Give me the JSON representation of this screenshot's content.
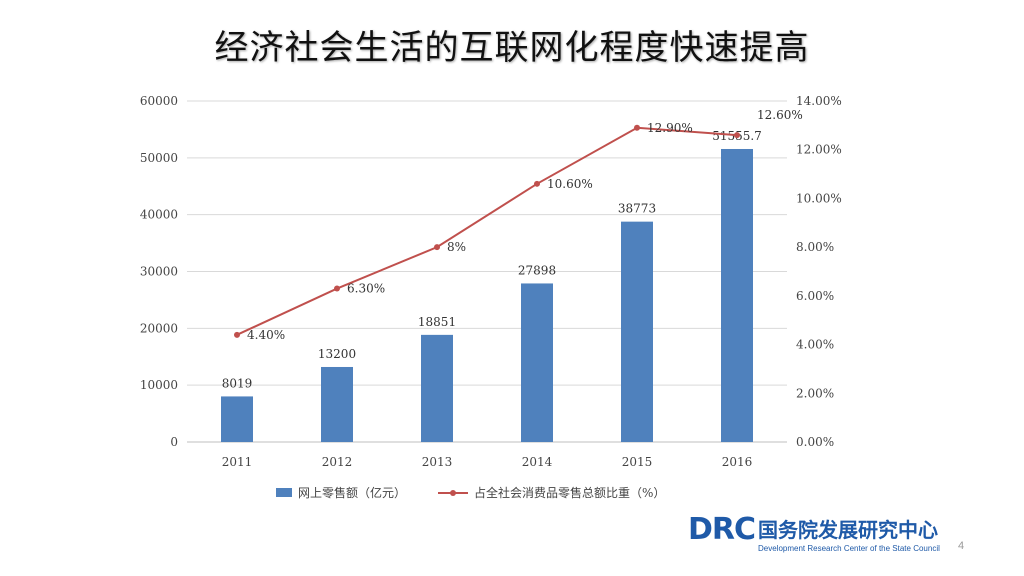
{
  "slide": {
    "title": "经济社会生活的互联网化程度快速提高",
    "page_number": "4"
  },
  "logo": {
    "abbr": "DRC",
    "name_cn": "国务院发展研究中心",
    "name_en": "Development Research Center of the State Council"
  },
  "colors": {
    "bar": "#4f81bd",
    "line": "#c0504d",
    "grid": "#d9d9d9"
  },
  "chart_data": {
    "type": "bar+line",
    "categories": [
      "2011",
      "2012",
      "2013",
      "2014",
      "2015",
      "2016"
    ],
    "series": [
      {
        "name": "网上零售额（亿元）",
        "kind": "bar",
        "axis": "left",
        "values": [
          8019,
          13200,
          18851,
          27898,
          38773,
          51555.7
        ],
        "labels": [
          "8019",
          "13200",
          "18851",
          "27898",
          "38773",
          "51555.7"
        ]
      },
      {
        "name": "占全社会消费品零售总额比重（%）",
        "kind": "line",
        "axis": "right",
        "values": [
          4.4,
          6.3,
          8,
          10.6,
          12.9,
          12.6
        ],
        "labels": [
          "4.40%",
          "6.30%",
          "8%",
          "10.60%",
          "12.90%",
          "12.60%"
        ]
      }
    ],
    "left_axis": {
      "min": 0,
      "max": 60000,
      "ticks": [
        "0",
        "10000",
        "20000",
        "30000",
        "40000",
        "50000",
        "60000"
      ],
      "tick_values": [
        0,
        10000,
        20000,
        30000,
        40000,
        50000,
        60000
      ]
    },
    "right_axis": {
      "min": 0,
      "max": 14,
      "ticks": [
        "0.00%",
        "2.00%",
        "4.00%",
        "6.00%",
        "8.00%",
        "10.00%",
        "12.00%",
        "14.00%"
      ],
      "tick_values": [
        0,
        2,
        4,
        6,
        8,
        10,
        12,
        14
      ]
    },
    "legend_position": "bottom",
    "grid": true
  }
}
